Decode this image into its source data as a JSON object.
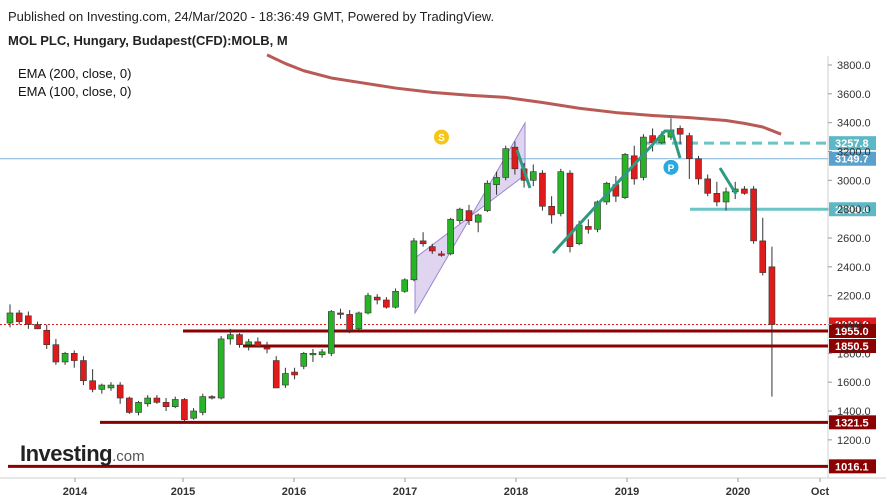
{
  "header": {
    "published": "Published on Investing.com, 24/Mar/2020 - 18:36:49 GMT, Powered by TradingView.",
    "symbol": "MOL PLC, Hungary, Budapest(CFD):MOLB, M"
  },
  "indicators": [
    "EMA (200, close, 0)",
    "EMA (100, close, 0)"
  ],
  "logo": {
    "main": "Investing",
    "suffix": ".com"
  },
  "colors": {
    "up": "#27b427",
    "down": "#e01b1b",
    "ema": "#b85a55",
    "support": "#8b0000",
    "teal": "#6cc4c4",
    "trend": "#2e9b80",
    "channel": "#c9b9e8"
  },
  "chart_data": {
    "type": "candlestick",
    "title": "MOL PLC, Hungary, Budapest(CFD):MOLB, M",
    "y_ticks": [
      "1200.0",
      "1400.0",
      "1600.0",
      "1800.0",
      "2000.0",
      "2200.0",
      "2400.0",
      "2600.0",
      "2800.0",
      "3000.0",
      "3200.0",
      "3400.0",
      "3600.0",
      "3800.0"
    ],
    "x_ticks": [
      "2014",
      "2015",
      "2016",
      "2017",
      "2018",
      "2019",
      "2020",
      "Oct"
    ],
    "ylim": [
      1000,
      3900
    ],
    "candles": [
      {
        "o": 2010,
        "h": 2140,
        "l": 1980,
        "c": 2080
      },
      {
        "o": 2080,
        "h": 2100,
        "l": 2000,
        "c": 2020
      },
      {
        "o": 2060,
        "h": 2090,
        "l": 1970,
        "c": 2000
      },
      {
        "o": 2000,
        "h": 2020,
        "l": 1980,
        "c": 1970
      },
      {
        "o": 1960,
        "h": 2000,
        "l": 1830,
        "c": 1860
      },
      {
        "o": 1860,
        "h": 1900,
        "l": 1720,
        "c": 1740
      },
      {
        "o": 1740,
        "h": 1810,
        "l": 1720,
        "c": 1800
      },
      {
        "o": 1800,
        "h": 1820,
        "l": 1700,
        "c": 1750
      },
      {
        "o": 1750,
        "h": 1780,
        "l": 1580,
        "c": 1610
      },
      {
        "o": 1610,
        "h": 1690,
        "l": 1530,
        "c": 1550
      },
      {
        "o": 1550,
        "h": 1590,
        "l": 1520,
        "c": 1580
      },
      {
        "o": 1560,
        "h": 1600,
        "l": 1540,
        "c": 1580
      },
      {
        "o": 1580,
        "h": 1600,
        "l": 1450,
        "c": 1490
      },
      {
        "o": 1490,
        "h": 1500,
        "l": 1380,
        "c": 1390
      },
      {
        "o": 1390,
        "h": 1470,
        "l": 1370,
        "c": 1460
      },
      {
        "o": 1450,
        "h": 1510,
        "l": 1430,
        "c": 1490
      },
      {
        "o": 1490,
        "h": 1510,
        "l": 1450,
        "c": 1460
      },
      {
        "o": 1460,
        "h": 1490,
        "l": 1400,
        "c": 1430
      },
      {
        "o": 1430,
        "h": 1500,
        "l": 1420,
        "c": 1480
      },
      {
        "o": 1480,
        "h": 1490,
        "l": 1330,
        "c": 1340
      },
      {
        "o": 1350,
        "h": 1420,
        "l": 1340,
        "c": 1400
      },
      {
        "o": 1390,
        "h": 1520,
        "l": 1370,
        "c": 1500
      },
      {
        "o": 1500,
        "h": 1510,
        "l": 1480,
        "c": 1490
      },
      {
        "o": 1490,
        "h": 1920,
        "l": 1480,
        "c": 1900
      },
      {
        "o": 1900,
        "h": 1970,
        "l": 1860,
        "c": 1930
      },
      {
        "o": 1930,
        "h": 1940,
        "l": 1840,
        "c": 1860
      },
      {
        "o": 1860,
        "h": 1900,
        "l": 1820,
        "c": 1880
      },
      {
        "o": 1880,
        "h": 1910,
        "l": 1840,
        "c": 1850
      },
      {
        "o": 1840,
        "h": 1880,
        "l": 1800,
        "c": 1830
      },
      {
        "o": 1750,
        "h": 1780,
        "l": 1570,
        "c": 1560
      },
      {
        "o": 1580,
        "h": 1700,
        "l": 1560,
        "c": 1660
      },
      {
        "o": 1670,
        "h": 1700,
        "l": 1620,
        "c": 1650
      },
      {
        "o": 1710,
        "h": 1810,
        "l": 1690,
        "c": 1800
      },
      {
        "o": 1790,
        "h": 1830,
        "l": 1740,
        "c": 1800
      },
      {
        "o": 1790,
        "h": 1830,
        "l": 1770,
        "c": 1810
      },
      {
        "o": 1800,
        "h": 2100,
        "l": 1780,
        "c": 2090
      },
      {
        "o": 2080,
        "h": 2110,
        "l": 2040,
        "c": 2070
      },
      {
        "o": 2070,
        "h": 2100,
        "l": 1940,
        "c": 1960
      },
      {
        "o": 1970,
        "h": 2090,
        "l": 1960,
        "c": 2080
      },
      {
        "o": 2080,
        "h": 2220,
        "l": 2070,
        "c": 2200
      },
      {
        "o": 2190,
        "h": 2210,
        "l": 2140,
        "c": 2170
      },
      {
        "o": 2170,
        "h": 2190,
        "l": 2110,
        "c": 2120
      },
      {
        "o": 2120,
        "h": 2250,
        "l": 2110,
        "c": 2230
      },
      {
        "o": 2230,
        "h": 2320,
        "l": 2220,
        "c": 2310
      },
      {
        "o": 2310,
        "h": 2600,
        "l": 2300,
        "c": 2580
      },
      {
        "o": 2580,
        "h": 2640,
        "l": 2540,
        "c": 2560
      },
      {
        "o": 2540,
        "h": 2560,
        "l": 2490,
        "c": 2510
      },
      {
        "o": 2490,
        "h": 2510,
        "l": 2470,
        "c": 2480
      },
      {
        "o": 2490,
        "h": 2740,
        "l": 2480,
        "c": 2730
      },
      {
        "o": 2720,
        "h": 2810,
        "l": 2700,
        "c": 2800
      },
      {
        "o": 2790,
        "h": 2830,
        "l": 2690,
        "c": 2720
      },
      {
        "o": 2710,
        "h": 2770,
        "l": 2640,
        "c": 2760
      },
      {
        "o": 2790,
        "h": 3000,
        "l": 2780,
        "c": 2980
      },
      {
        "o": 2970,
        "h": 3060,
        "l": 2900,
        "c": 3020
      },
      {
        "o": 3020,
        "h": 3240,
        "l": 3000,
        "c": 3220
      },
      {
        "o": 3230,
        "h": 3270,
        "l": 3040,
        "c": 3080
      },
      {
        "o": 3080,
        "h": 3120,
        "l": 2950,
        "c": 3000
      },
      {
        "o": 3000,
        "h": 3110,
        "l": 2960,
        "c": 3060
      },
      {
        "o": 3050,
        "h": 3070,
        "l": 2790,
        "c": 2820
      },
      {
        "o": 2820,
        "h": 2890,
        "l": 2700,
        "c": 2760
      },
      {
        "o": 2770,
        "h": 3080,
        "l": 2750,
        "c": 3060
      },
      {
        "o": 3050,
        "h": 3070,
        "l": 2500,
        "c": 2540
      },
      {
        "o": 2560,
        "h": 2720,
        "l": 2550,
        "c": 2690
      },
      {
        "o": 2680,
        "h": 2730,
        "l": 2630,
        "c": 2660
      },
      {
        "o": 2660,
        "h": 2860,
        "l": 2640,
        "c": 2850
      },
      {
        "o": 2850,
        "h": 2990,
        "l": 2830,
        "c": 2980
      },
      {
        "o": 2970,
        "h": 3030,
        "l": 2850,
        "c": 2890
      },
      {
        "o": 2880,
        "h": 3190,
        "l": 2870,
        "c": 3180
      },
      {
        "o": 3170,
        "h": 3240,
        "l": 2970,
        "c": 3010
      },
      {
        "o": 3020,
        "h": 3320,
        "l": 3000,
        "c": 3300
      },
      {
        "o": 3310,
        "h": 3360,
        "l": 3200,
        "c": 3260
      },
      {
        "o": 3260,
        "h": 3340,
        "l": 3250,
        "c": 3310
      },
      {
        "o": 3300,
        "h": 3430,
        "l": 3280,
        "c": 3350
      },
      {
        "o": 3360,
        "h": 3380,
        "l": 3250,
        "c": 3320
      },
      {
        "o": 3310,
        "h": 3330,
        "l": 3010,
        "c": 3150
      },
      {
        "o": 3150,
        "h": 3170,
        "l": 2970,
        "c": 3010
      },
      {
        "o": 3010,
        "h": 3040,
        "l": 2890,
        "c": 2910
      },
      {
        "o": 2910,
        "h": 2990,
        "l": 2820,
        "c": 2850
      },
      {
        "o": 2850,
        "h": 2950,
        "l": 2790,
        "c": 2920
      },
      {
        "o": 2920,
        "h": 2990,
        "l": 2870,
        "c": 2940
      },
      {
        "o": 2940,
        "h": 2960,
        "l": 2900,
        "c": 2910
      },
      {
        "o": 2940,
        "h": 2960,
        "l": 2560,
        "c": 2580
      },
      {
        "o": 2580,
        "h": 2740,
        "l": 2340,
        "c": 2360
      },
      {
        "o": 2400,
        "h": 2540,
        "l": 1500,
        "c": 2000
      }
    ],
    "ema_200": [
      {
        "t": 28.0,
        "v": 3870
      },
      {
        "t": 30,
        "v": 3810
      },
      {
        "t": 32,
        "v": 3760
      },
      {
        "t": 35,
        "v": 3710
      },
      {
        "t": 38,
        "v": 3680
      },
      {
        "t": 42,
        "v": 3640
      },
      {
        "t": 46,
        "v": 3610
      },
      {
        "t": 50,
        "v": 3590
      },
      {
        "t": 54,
        "v": 3575
      },
      {
        "t": 58,
        "v": 3540
      },
      {
        "t": 62,
        "v": 3500
      },
      {
        "t": 66,
        "v": 3470
      },
      {
        "t": 70,
        "v": 3450
      },
      {
        "t": 74,
        "v": 3435
      },
      {
        "t": 78,
        "v": 3415
      },
      {
        "t": 80,
        "v": 3395
      },
      {
        "t": 82,
        "v": 3370
      },
      {
        "t": 84,
        "v": 3320
      }
    ],
    "levels": [
      {
        "value": 3257.8,
        "label": "3257.8",
        "style": "teal-dashed"
      },
      {
        "value": 3149.7,
        "label": "3149.7",
        "style": "thin-blue"
      },
      {
        "value": 2799.4,
        "label": "2799.4",
        "style": "teal"
      },
      {
        "value": 2000.0,
        "label": "2000.0",
        "style": "last-price"
      },
      {
        "value": 1955.0,
        "label": "1955.0",
        "style": "support"
      },
      {
        "value": 1850.5,
        "label": "1850.5",
        "style": "support"
      },
      {
        "value": 1321.5,
        "label": "1321.5",
        "style": "support"
      },
      {
        "value": 1016.1,
        "label": "1016.1",
        "style": "support"
      }
    ],
    "markers": [
      {
        "t": 47,
        "value": 3300,
        "label": "S",
        "color": "#f5c518"
      },
      {
        "t": 72,
        "value": 3090,
        "label": "P",
        "color": "#2aa8e0"
      }
    ]
  }
}
